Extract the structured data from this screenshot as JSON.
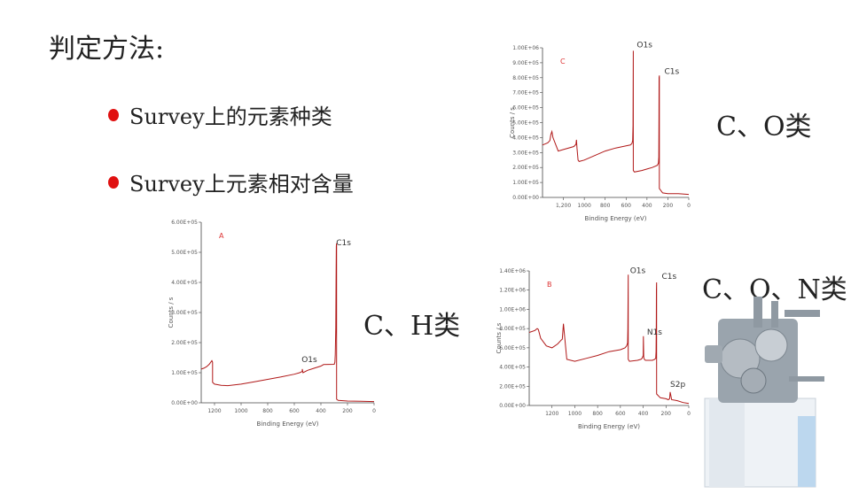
{
  "title": "判定方法:",
  "bullets": [
    "Survey上的元素种类",
    "Survey上元素相对含量"
  ],
  "labels": {
    "c_o": "C、O类",
    "c_h": "C、H类",
    "c_o_n": "C、O、N类"
  },
  "accent_color": "#e01010",
  "chart_data": [
    {
      "type": "line",
      "panel_label": "A",
      "xlabel": "Binding Energy (eV)",
      "ylabel": "Counts / s",
      "xlim": [
        1300,
        0
      ],
      "ylim": [
        0,
        600000
      ],
      "xticks": [
        "1200",
        "1000",
        "800",
        "600",
        "400",
        "200",
        "0"
      ],
      "yticks": [
        "0.00E+00",
        "1.00E+05",
        "2.00E+05",
        "3.00E+05",
        "4.00E+05",
        "5.00E+05",
        "6.00E+05"
      ],
      "peaks": [
        "C1s",
        "O1s"
      ],
      "series": [
        {
          "color": "#b01818",
          "x": [
            1300,
            1280,
            1260,
            1240,
            1220,
            1215,
            1215,
            1200,
            1150,
            1100,
            1000,
            900,
            800,
            700,
            600,
            560,
            540,
            540,
            535,
            500,
            450,
            400,
            380,
            300,
            295,
            292,
            288,
            286,
            284,
            282,
            282,
            270,
            200,
            100,
            0
          ],
          "y": [
            112000,
            115000,
            120000,
            128000,
            140000,
            135000,
            68000,
            62000,
            58000,
            57000,
            62000,
            70000,
            78000,
            86000,
            95000,
            100000,
            104000,
            112000,
            100000,
            108000,
            115000,
            122000,
            127000,
            128000,
            135000,
            160000,
            250000,
            400000,
            520000,
            530000,
            12000,
            8000,
            6000,
            5000,
            4000
          ]
        }
      ]
    },
    {
      "type": "line",
      "panel_label": "C",
      "xlabel": "Binding Energy (eV)",
      "ylabel": "Counts / s",
      "xlim": [
        1400,
        0
      ],
      "ylim": [
        0,
        1000000
      ],
      "xticks": [
        "1,200",
        "1000",
        "800",
        "600",
        "400",
        "200",
        "0"
      ],
      "yticks": [
        "0.00E+00",
        "1.00E+05",
        "2.00E+05",
        "3.00E+05",
        "4.00E+05",
        "5.00E+05",
        "6.00E+05",
        "7.00E+05",
        "8.00E+05",
        "9.00E+05",
        "1.00E+06"
      ],
      "peaks": [
        "O1s",
        "C1s"
      ],
      "series": [
        {
          "color": "#b01818",
          "x": [
            1400,
            1350,
            1330,
            1320,
            1310,
            1300,
            1250,
            1200,
            1100,
            1080,
            1075,
            1070,
            1060,
            1050,
            1000,
            900,
            800,
            700,
            600,
            560,
            545,
            537,
            534,
            531,
            531,
            520,
            450,
            400,
            350,
            300,
            290,
            287,
            285,
            284,
            282,
            282,
            250,
            200,
            100,
            0
          ],
          "y": [
            350000,
            365000,
            380000,
            420000,
            440000,
            400000,
            310000,
            320000,
            340000,
            355000,
            385000,
            330000,
            250000,
            240000,
            250000,
            280000,
            310000,
            330000,
            345000,
            350000,
            360000,
            380000,
            480000,
            980000,
            180000,
            170000,
            180000,
            190000,
            200000,
            215000,
            230000,
            270000,
            550000,
            800000,
            815000,
            60000,
            30000,
            25000,
            25000,
            20000
          ]
        }
      ]
    },
    {
      "type": "line",
      "panel_label": "B",
      "xlabel": "Binding Energy (eV)",
      "ylabel": "Counts / s",
      "xlim": [
        1400,
        0
      ],
      "ylim": [
        0,
        1400000
      ],
      "xticks": [
        "1200",
        "1000",
        "800",
        "600",
        "400",
        "200",
        "0"
      ],
      "yticks": [
        "0.00E+00",
        "2.00E+05",
        "4.00E+05",
        "6.00E+05",
        "8.00E+05",
        "1.00E+06",
        "1.20E+06",
        "1.40E+06"
      ],
      "peaks": [
        "O1s",
        "C1s",
        "N1s",
        "S2p"
      ],
      "series": [
        {
          "color": "#b01818",
          "x": [
            1400,
            1350,
            1330,
            1320,
            1300,
            1250,
            1200,
            1150,
            1120,
            1110,
            1100,
            1070,
            1000,
            900,
            800,
            700,
            600,
            560,
            545,
            537,
            534,
            531,
            531,
            520,
            450,
            420,
            410,
            400,
            398,
            395,
            390,
            380,
            320,
            300,
            290,
            287,
            285,
            284,
            282,
            282,
            250,
            200,
            180,
            168,
            163,
            150,
            100,
            50,
            0
          ],
          "y": [
            760000,
            780000,
            800000,
            790000,
            700000,
            620000,
            600000,
            640000,
            680000,
            690000,
            850000,
            480000,
            460000,
            490000,
            520000,
            560000,
            580000,
            600000,
            620000,
            650000,
            800000,
            1360000,
            480000,
            460000,
            470000,
            480000,
            490000,
            520000,
            720000,
            500000,
            480000,
            470000,
            470000,
            480000,
            490000,
            560000,
            900000,
            1200000,
            1280000,
            120000,
            80000,
            70000,
            60000,
            70000,
            140000,
            60000,
            50000,
            30000,
            20000
          ]
        }
      ]
    }
  ]
}
